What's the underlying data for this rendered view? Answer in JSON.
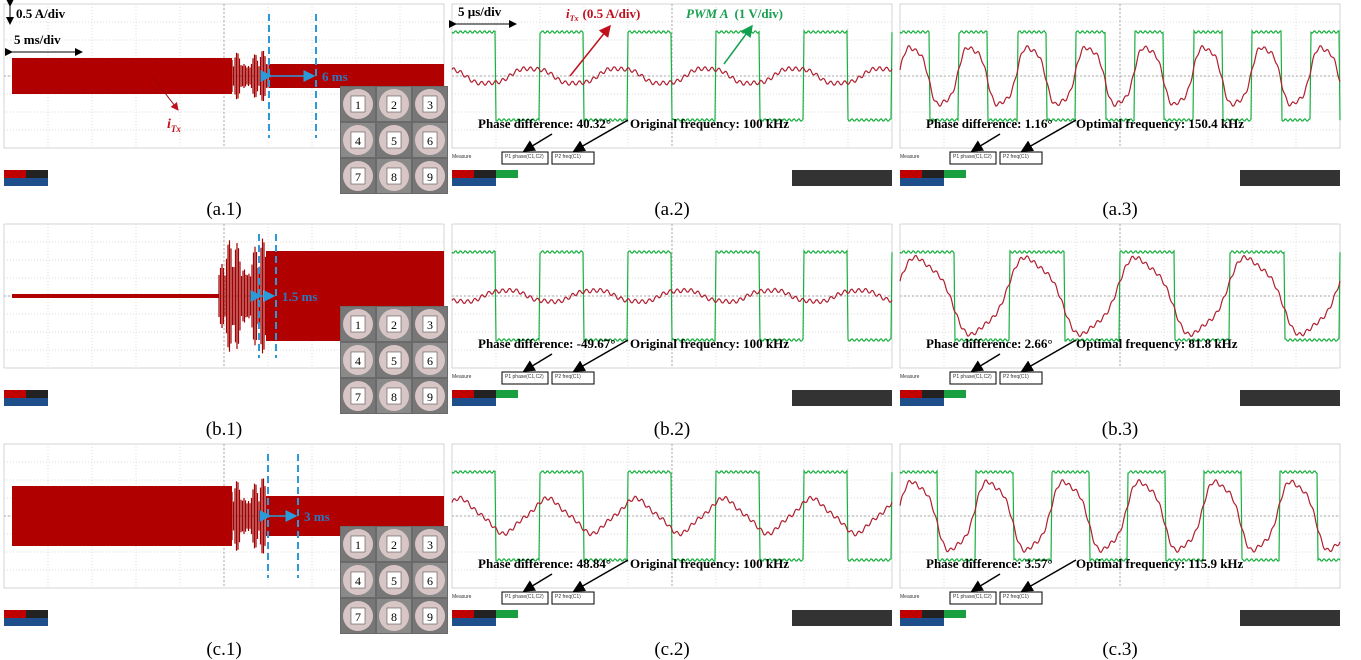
{
  "panels": [
    {
      "caption": "(a.1)",
      "current_scale": "0.5 A/div",
      "time_scale": "5 ms/div",
      "current_label": {
        "symbol": "i",
        "subscript": "Tx"
      },
      "duration": "6 ms",
      "inset_labels": [
        "1",
        "2",
        "3",
        "4",
        "5",
        "6",
        "7",
        "8",
        "9"
      ]
    },
    {
      "caption": "(a.2)",
      "time_scale": "5 µs/div",
      "current_label": {
        "symbol": "i",
        "subscript": "Tx"
      },
      "current_scale": "(0.5 A/div)",
      "pwm_label": "PWM A",
      "pwm_scale": "(1 V/div)",
      "phase": "Phase difference: 40.32°",
      "frequency": "Original frequency: 100 kHz",
      "measure": "Measure",
      "p1": "P1 phase(C1,C2)",
      "p2": "P2 freq(C1)"
    },
    {
      "caption": "(a.3)",
      "phase": "Phase difference: 1.16°",
      "frequency": "Optimal frequency: 150.4 kHz",
      "measure": "Measure",
      "p1": "P1 phase(C1,C2)",
      "p2": "P2 freq(C1)"
    },
    {
      "caption": "(b.1)",
      "duration": "1.5 ms",
      "inset_labels": [
        "1",
        "2",
        "3",
        "4",
        "5",
        "6",
        "7",
        "8",
        "9"
      ]
    },
    {
      "caption": "(b.2)",
      "phase": "Phase difference: -49.67°",
      "frequency": "Original frequency: 100 kHz",
      "measure": "Measure",
      "p1": "P1 phase(C1,C2)",
      "p2": "P2 freq(C1)"
    },
    {
      "caption": "(b.3)",
      "phase": "Phase difference: 2.66°",
      "frequency": "Optimal frequency: 81.8 kHz",
      "measure": "Measure",
      "p1": "P1 phase(C1,C2)",
      "p2": "P2 freq(C1)"
    },
    {
      "caption": "(c.1)",
      "duration": "3 ms",
      "inset_labels": [
        "1",
        "2",
        "3",
        "4",
        "5",
        "6",
        "7",
        "8",
        "9"
      ]
    },
    {
      "caption": "(c.2)",
      "phase": "Phase difference: 48.84°",
      "frequency": "Original frequency: 100 kHz",
      "measure": "Measure",
      "p1": "P1 phase(C1,C2)",
      "p2": "P2 freq(C1)"
    },
    {
      "caption": "(c.3)",
      "phase": "Phase difference: 3.57°",
      "frequency": "Optimal frequency: 115.9 kHz",
      "measure": "Measure",
      "p1": "P1 phase(C1,C2)",
      "p2": "P2 freq(C1)"
    }
  ]
}
